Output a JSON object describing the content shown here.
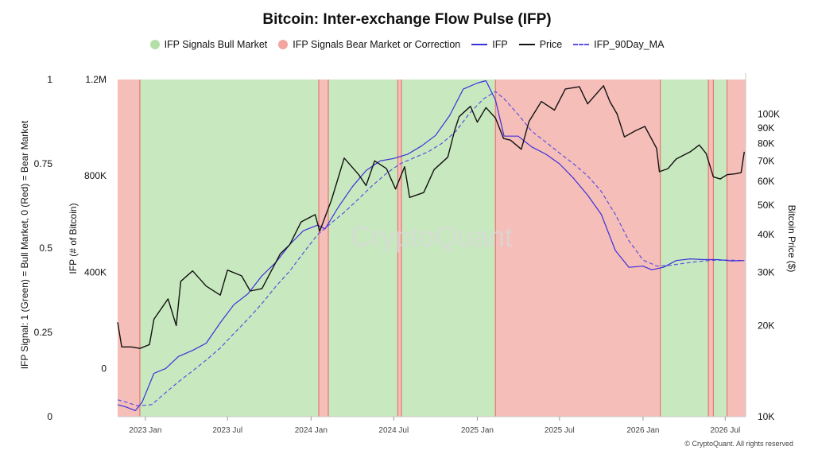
{
  "title": "Bitcoin: Inter-exchange Flow Pulse (IFP)",
  "legend": [
    {
      "label": "IFP Signals Bull Market",
      "kind": "dot",
      "color": "#b3e0a6"
    },
    {
      "label": "IFP Signals Bear Market or Correction",
      "kind": "dot",
      "color": "#f2a59e"
    },
    {
      "label": "IFP",
      "kind": "line",
      "color": "#3b30d9"
    },
    {
      "label": "Price",
      "kind": "line",
      "color": "#111111"
    },
    {
      "label": "IFP_90Day_MA",
      "kind": "dash",
      "color": "#5a52e0"
    }
  ],
  "watermark": "CryptoQuant",
  "copyright": "© CryptoQuant. All rights reserved",
  "chart_data": {
    "type": "line",
    "x_range": [
      "2022-11-01",
      "2026-08-15"
    ],
    "x_ticks": [
      "2023 Jan",
      "2023 Jul",
      "2024 Jan",
      "2024 Jul",
      "2025 Jan",
      "2025 Jul",
      "2026 Jan",
      "2026 Jul"
    ],
    "axes": {
      "signal": {
        "label": "IFP Signal: 1 (Green) = Bull Market, 0 (Red) = Bear Market",
        "ticks": [
          "0",
          "0.25",
          "0.5",
          "0.75",
          "1"
        ],
        "range": [
          0,
          1
        ]
      },
      "ifp": {
        "label": "IFP (# of Bitcoin)",
        "ticks": [
          "0",
          "400K",
          "800K",
          "1.2M"
        ],
        "range": [
          -200000,
          1200000
        ]
      },
      "price": {
        "label": "Bitcoin Price ($)",
        "scale": "log",
        "ticks": [
          "10K",
          "20K",
          "30K",
          "40K",
          "50K",
          "60K",
          "70K",
          "80K",
          "90K",
          "100K"
        ],
        "range": [
          10000,
          130000
        ]
      }
    },
    "signal_periods": [
      {
        "start": "2022-11-01",
        "end": "2022-12-20",
        "signal": 0
      },
      {
        "start": "2022-12-20",
        "end": "2024-01-18",
        "signal": 1
      },
      {
        "start": "2024-01-18",
        "end": "2024-02-08",
        "signal": 0
      },
      {
        "start": "2024-02-08",
        "end": "2024-07-10",
        "signal": 1
      },
      {
        "start": "2024-07-10",
        "end": "2024-07-18",
        "signal": 0
      },
      {
        "start": "2024-07-18",
        "end": "2025-02-10",
        "signal": 1
      },
      {
        "start": "2025-02-10",
        "end": "2026-02-08",
        "signal": 0
      },
      {
        "start": "2026-02-08",
        "end": "2026-05-25",
        "signal": 1
      },
      {
        "start": "2026-05-25",
        "end": "2026-06-05",
        "signal": 0
      },
      {
        "start": "2026-06-05",
        "end": "2026-07-05",
        "signal": 1
      },
      {
        "start": "2026-07-05",
        "end": "2026-08-15",
        "signal": 0
      }
    ],
    "series": [
      {
        "name": "Price",
        "axis": "price",
        "points": [
          [
            "2022-11-01",
            20500
          ],
          [
            "2022-11-10",
            17000
          ],
          [
            "2022-12-01",
            17000
          ],
          [
            "2022-12-20",
            16800
          ],
          [
            "2023-01-10",
            17300
          ],
          [
            "2023-01-20",
            21000
          ],
          [
            "2023-02-20",
            24500
          ],
          [
            "2023-03-10",
            20000
          ],
          [
            "2023-03-20",
            28000
          ],
          [
            "2023-04-15",
            30300
          ],
          [
            "2023-05-15",
            27000
          ],
          [
            "2023-06-15",
            25200
          ],
          [
            "2023-07-01",
            30500
          ],
          [
            "2023-08-01",
            29200
          ],
          [
            "2023-08-20",
            26000
          ],
          [
            "2023-09-15",
            26500
          ],
          [
            "2023-10-25",
            34500
          ],
          [
            "2023-11-15",
            37000
          ],
          [
            "2023-12-10",
            44000
          ],
          [
            "2024-01-10",
            46500
          ],
          [
            "2024-01-20",
            41000
          ],
          [
            "2024-02-15",
            52000
          ],
          [
            "2024-03-14",
            71500
          ],
          [
            "2024-04-15",
            63000
          ],
          [
            "2024-05-01",
            58000
          ],
          [
            "2024-05-20",
            70000
          ],
          [
            "2024-06-15",
            66000
          ],
          [
            "2024-07-05",
            56500
          ],
          [
            "2024-07-25",
            67000
          ],
          [
            "2024-08-05",
            53000
          ],
          [
            "2024-09-05",
            55000
          ],
          [
            "2024-09-28",
            65500
          ],
          [
            "2024-10-28",
            72000
          ],
          [
            "2024-11-12",
            88000
          ],
          [
            "2024-11-22",
            98000
          ],
          [
            "2024-12-17",
            106000
          ],
          [
            "2025-01-01",
            94000
          ],
          [
            "2025-01-20",
            105000
          ],
          [
            "2025-02-10",
            97000
          ],
          [
            "2025-02-28",
            83000
          ],
          [
            "2025-03-15",
            82000
          ],
          [
            "2025-04-08",
            76500
          ],
          [
            "2025-04-25",
            94500
          ],
          [
            "2025-05-22",
            110000
          ],
          [
            "2025-06-20",
            103000
          ],
          [
            "2025-07-14",
            121000
          ],
          [
            "2025-08-14",
            123000
          ],
          [
            "2025-09-01",
            108000
          ],
          [
            "2025-10-06",
            124000
          ],
          [
            "2025-10-20",
            110000
          ],
          [
            "2025-11-05",
            100000
          ],
          [
            "2025-11-21",
            84000
          ],
          [
            "2025-12-15",
            88000
          ],
          [
            "2026-01-05",
            91000
          ],
          [
            "2026-01-31",
            77000
          ],
          [
            "2026-02-06",
            64500
          ],
          [
            "2026-02-25",
            66000
          ],
          [
            "2026-03-15",
            71000
          ],
          [
            "2026-04-15",
            75000
          ],
          [
            "2026-05-05",
            79000
          ],
          [
            "2026-05-20",
            74000
          ],
          [
            "2026-06-05",
            62000
          ],
          [
            "2026-06-20",
            61000
          ],
          [
            "2026-07-05",
            63000
          ],
          [
            "2026-07-25",
            63500
          ],
          [
            "2026-08-05",
            64000
          ],
          [
            "2026-08-12",
            75000
          ]
        ]
      },
      {
        "name": "IFP",
        "axis": "ifp",
        "points": [
          [
            "2022-11-01",
            -150000
          ],
          [
            "2022-11-20",
            -160000
          ],
          [
            "2022-12-10",
            -175000
          ],
          [
            "2022-12-25",
            -140000
          ],
          [
            "2023-01-20",
            -20000
          ],
          [
            "2023-02-15",
            0
          ],
          [
            "2023-03-15",
            50000
          ],
          [
            "2023-04-15",
            75000
          ],
          [
            "2023-05-15",
            105000
          ],
          [
            "2023-06-15",
            190000
          ],
          [
            "2023-07-15",
            265000
          ],
          [
            "2023-08-15",
            310000
          ],
          [
            "2023-09-15",
            385000
          ],
          [
            "2023-10-15",
            440000
          ],
          [
            "2023-11-15",
            515000
          ],
          [
            "2023-12-15",
            572000
          ],
          [
            "2024-01-15",
            595000
          ],
          [
            "2024-02-01",
            580000
          ],
          [
            "2024-03-01",
            670000
          ],
          [
            "2024-04-01",
            755000
          ],
          [
            "2024-05-01",
            822000
          ],
          [
            "2024-06-01",
            862000
          ],
          [
            "2024-07-01",
            872000
          ],
          [
            "2024-08-01",
            890000
          ],
          [
            "2024-09-01",
            925000
          ],
          [
            "2024-10-01",
            968000
          ],
          [
            "2024-11-01",
            1050000
          ],
          [
            "2024-12-01",
            1160000
          ],
          [
            "2025-01-01",
            1185000
          ],
          [
            "2025-01-20",
            1195000
          ],
          [
            "2025-02-10",
            1115000
          ],
          [
            "2025-03-01",
            965000
          ],
          [
            "2025-04-01",
            965000
          ],
          [
            "2025-05-01",
            920000
          ],
          [
            "2025-06-01",
            890000
          ],
          [
            "2025-07-01",
            850000
          ],
          [
            "2025-08-01",
            790000
          ],
          [
            "2025-09-01",
            720000
          ],
          [
            "2025-10-01",
            640000
          ],
          [
            "2025-11-01",
            490000
          ],
          [
            "2025-12-01",
            420000
          ],
          [
            "2026-01-01",
            425000
          ],
          [
            "2026-01-20",
            410000
          ],
          [
            "2026-02-15",
            420000
          ],
          [
            "2026-03-15",
            448000
          ],
          [
            "2026-04-15",
            455000
          ],
          [
            "2026-05-15",
            452000
          ],
          [
            "2026-06-15",
            452000
          ],
          [
            "2026-07-15",
            447000
          ],
          [
            "2026-08-12",
            448000
          ]
        ]
      },
      {
        "name": "IFP_90Day_MA",
        "axis": "ifp",
        "points": [
          [
            "2022-11-01",
            -130000
          ],
          [
            "2022-11-20",
            -140000
          ],
          [
            "2022-12-15",
            -155000
          ],
          [
            "2023-01-15",
            -150000
          ],
          [
            "2023-02-15",
            -100000
          ],
          [
            "2023-03-15",
            -55000
          ],
          [
            "2023-04-15",
            -10000
          ],
          [
            "2023-05-15",
            35000
          ],
          [
            "2023-06-15",
            85000
          ],
          [
            "2023-07-15",
            145000
          ],
          [
            "2023-08-15",
            205000
          ],
          [
            "2023-09-15",
            270000
          ],
          [
            "2023-10-15",
            340000
          ],
          [
            "2023-11-15",
            405000
          ],
          [
            "2023-12-15",
            480000
          ],
          [
            "2024-01-15",
            555000
          ],
          [
            "2024-02-15",
            605000
          ],
          [
            "2024-03-15",
            650000
          ],
          [
            "2024-04-15",
            705000
          ],
          [
            "2024-05-15",
            760000
          ],
          [
            "2024-06-15",
            810000
          ],
          [
            "2024-07-15",
            850000
          ],
          [
            "2024-08-15",
            875000
          ],
          [
            "2024-09-15",
            900000
          ],
          [
            "2024-10-15",
            935000
          ],
          [
            "2024-11-15",
            985000
          ],
          [
            "2024-12-15",
            1060000
          ],
          [
            "2025-01-15",
            1120000
          ],
          [
            "2025-02-10",
            1150000
          ],
          [
            "2025-03-01",
            1120000
          ],
          [
            "2025-04-01",
            1055000
          ],
          [
            "2025-05-01",
            985000
          ],
          [
            "2025-06-01",
            940000
          ],
          [
            "2025-07-01",
            895000
          ],
          [
            "2025-08-01",
            850000
          ],
          [
            "2025-09-01",
            800000
          ],
          [
            "2025-10-01",
            735000
          ],
          [
            "2025-11-01",
            640000
          ],
          [
            "2025-12-01",
            530000
          ],
          [
            "2026-01-01",
            450000
          ],
          [
            "2026-02-01",
            425000
          ],
          [
            "2026-03-01",
            428000
          ],
          [
            "2026-04-01",
            437000
          ],
          [
            "2026-05-01",
            444000
          ],
          [
            "2026-06-01",
            449000
          ],
          [
            "2026-07-01",
            450000
          ],
          [
            "2026-08-12",
            448000
          ]
        ]
      }
    ]
  }
}
